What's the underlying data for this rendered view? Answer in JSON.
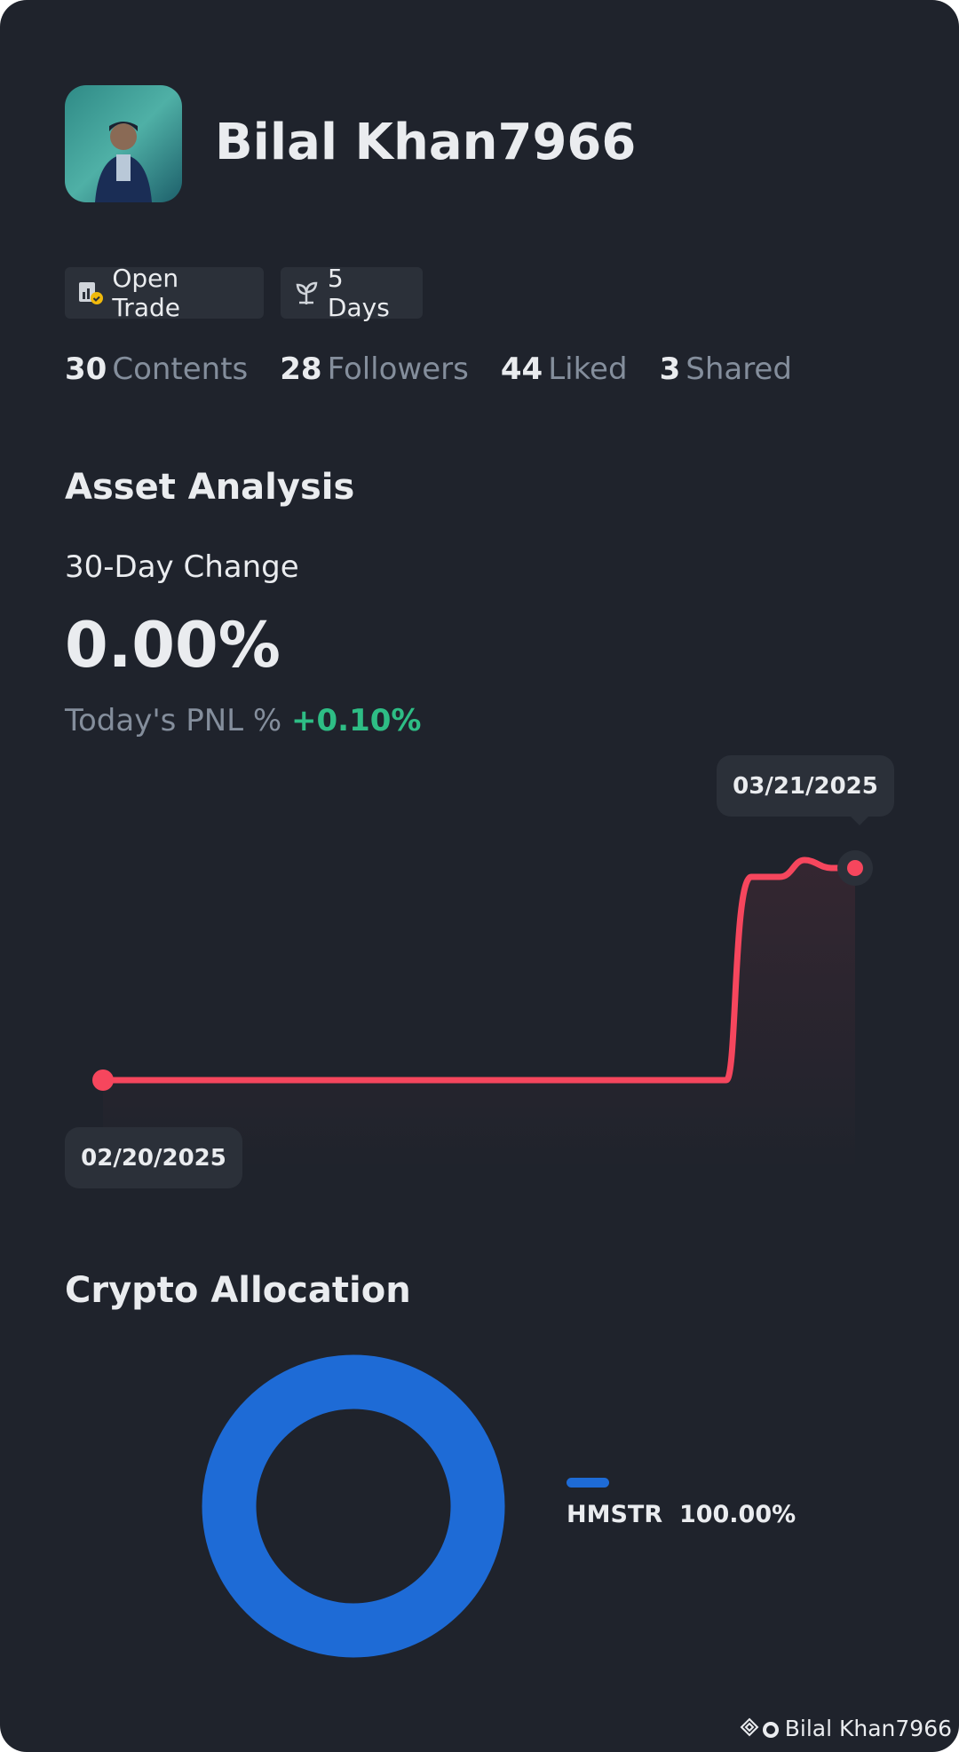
{
  "profile": {
    "name": "Bilal Khan7966",
    "badges": [
      "Open Trade",
      "5 Days"
    ],
    "stats": [
      {
        "value": 30,
        "label": "Contents"
      },
      {
        "value": 28,
        "label": "Followers"
      },
      {
        "value": 44,
        "label": "Liked"
      },
      {
        "value": 3,
        "label": "Shared"
      }
    ]
  },
  "asset_analysis": {
    "title": "Asset Analysis",
    "change_label": "30-Day Change",
    "change_value": "0.00%",
    "pnl_label": "Today's PNL %",
    "pnl_value": "+0.10%",
    "start_date": "02/20/2025",
    "end_date": "03/21/2025"
  },
  "crypto_allocation": {
    "title": "Crypto Allocation",
    "items": [
      {
        "name": "HMSTR",
        "percent": "100.00%"
      }
    ]
  },
  "watermark": "Bilal Khan7966"
}
